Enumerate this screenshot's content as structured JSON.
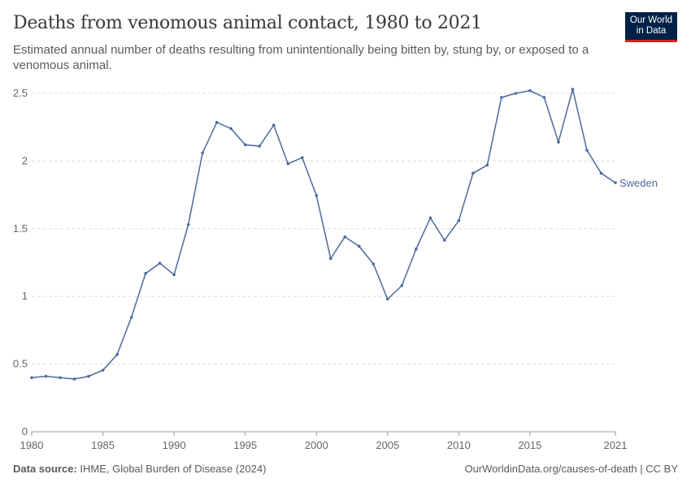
{
  "header": {
    "title": "Deaths from venomous animal contact, 1980 to 2021",
    "subtitle": "Estimated annual number of deaths resulting from unintentionally being bitten by, stung by, or exposed to a venomous animal.",
    "logo": "Our World in Data"
  },
  "footer": {
    "source_label": "Data source:",
    "source": "IHME, Global Burden of Disease (2024)",
    "link": "OurWorldinData.org/causes-of-death | CC BY"
  },
  "chart_data": {
    "type": "line",
    "title": "Deaths from venomous animal contact, 1980 to 2021",
    "xlim": [
      1980,
      2021
    ],
    "ylim": [
      0,
      2.5
    ],
    "x_ticks": [
      "1980",
      "1985",
      "1990",
      "1995",
      "2000",
      "2005",
      "2010",
      "2015",
      "2021"
    ],
    "y_ticks": [
      "0",
      "0.5",
      "1",
      "1.5",
      "2",
      "2.5"
    ],
    "grid": "horizontal dashed",
    "color": "#4c6a9c",
    "x": [
      1980,
      1981,
      1982,
      1983,
      1984,
      1985,
      1986,
      1987,
      1988,
      1989,
      1990,
      1991,
      1992,
      1993,
      1994,
      1995,
      1996,
      1997,
      1998,
      1999,
      2000,
      2001,
      2002,
      2003,
      2004,
      2005,
      2006,
      2007,
      2008,
      2009,
      2010,
      2011,
      2012,
      2013,
      2014,
      2015,
      2016,
      2017,
      2018,
      2019,
      2020,
      2021
    ],
    "series": [
      {
        "name": "Sweden",
        "values": [
          0.4,
          0.41,
          0.4,
          0.39,
          0.41,
          0.455,
          0.57,
          0.845,
          1.17,
          1.245,
          1.16,
          1.53,
          2.06,
          2.285,
          2.24,
          2.12,
          2.11,
          2.265,
          1.98,
          2.025,
          1.745,
          1.28,
          1.44,
          1.37,
          1.24,
          0.98,
          1.08,
          1.35,
          1.58,
          1.415,
          1.56,
          1.91,
          1.97,
          2.47,
          2.5,
          2.52,
          2.47,
          2.14,
          2.53,
          2.08,
          1.91,
          1.84
        ]
      }
    ]
  }
}
